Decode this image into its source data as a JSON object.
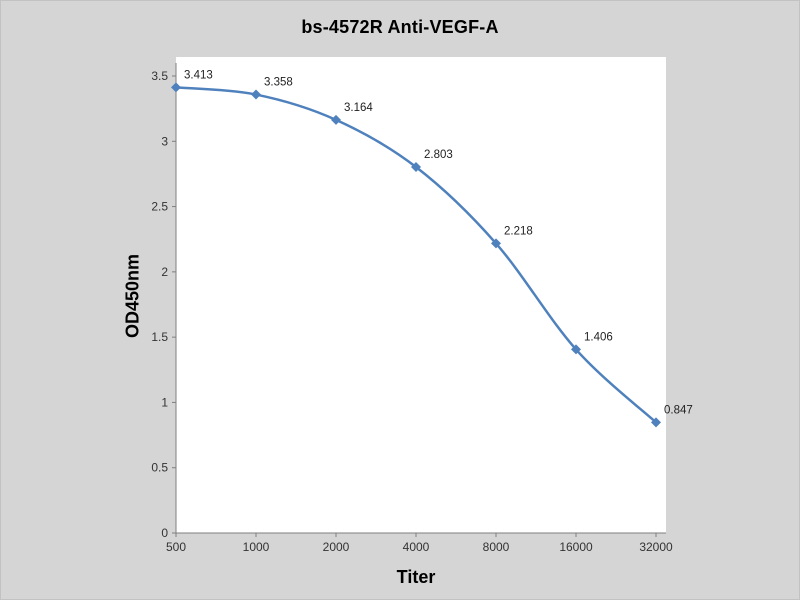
{
  "chart": {
    "title": "bs-4572R Anti-VEGF-A",
    "xlabel": "Titer",
    "ylabel": "OD450nm"
  },
  "chart_data": {
    "type": "line",
    "title": "bs-4572R Anti-VEGF-A",
    "xlabel": "Titer",
    "ylabel": "OD450nm",
    "categories": [
      "500",
      "1000",
      "2000",
      "4000",
      "8000",
      "16000",
      "32000"
    ],
    "values": [
      3.413,
      3.358,
      3.164,
      2.803,
      2.218,
      1.406,
      0.847
    ],
    "data_labels": [
      "3.413",
      "3.358",
      "3.164",
      "2.803",
      "2.218",
      "1.406",
      "0.847"
    ],
    "y_ticks": [
      "0",
      "0.5",
      "1",
      "1.5",
      "2",
      "2.5",
      "3",
      "3.5"
    ],
    "ylim": [
      0,
      3.5
    ],
    "grid": false,
    "legend": "none",
    "marker": "diamond",
    "line_color": "#4f81bd"
  },
  "colors": {
    "background": "#d5d5d5",
    "plot_background": "#ffffff",
    "line": "#4f81bd",
    "axis": "#7f7f7f",
    "tick_text": "#333333",
    "label_text": "#1f1f1f"
  }
}
